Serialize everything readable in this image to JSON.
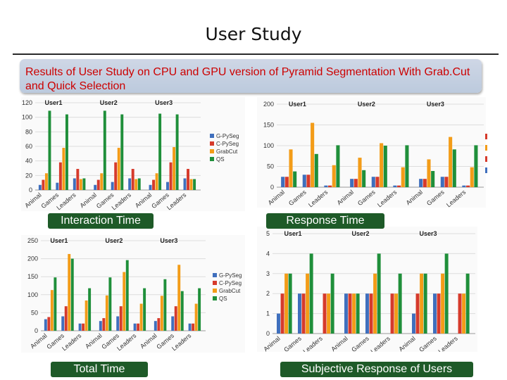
{
  "slide": {
    "title": "User Study",
    "subtitle": "Results of User Study on CPU and GPU version of Pyramid Segmentation With Grab.Cut and Quick Selection"
  },
  "captions": {
    "interaction": "Interaction Time",
    "response": "Response Time",
    "total": "Total Time",
    "subjective": "Subjective Response of Users"
  },
  "colors": {
    "g_pyseg": "#3f6fbd",
    "c_pyseg": "#d63a2b",
    "grabcut": "#f39c18",
    "qs": "#1f8f3a",
    "caption_bg": "#1e5a28",
    "subtitle_text": "#cc0000"
  },
  "chart_data": [
    {
      "id": "interaction",
      "type": "bar",
      "groups": [
        "User1",
        "User2",
        "User3"
      ],
      "categories": [
        "Animal",
        "Games",
        "Leaders"
      ],
      "yticks": [
        0,
        20,
        40,
        60,
        80,
        100,
        120
      ],
      "ylim": [
        0,
        120
      ],
      "legend": [
        "G-PySeg",
        "C-PySeg",
        "GrabCut",
        "QS"
      ],
      "series": [
        {
          "name": "G-PySeg",
          "values": [
            [
              7,
              10,
              16
            ],
            [
              7,
              11,
              16
            ],
            [
              7,
              11,
              16
            ]
          ]
        },
        {
          "name": "C-PySeg",
          "values": [
            [
              14,
              38,
              29
            ],
            [
              14,
              38,
              29
            ],
            [
              14,
              38,
              29
            ]
          ]
        },
        {
          "name": "GrabCut",
          "values": [
            [
              23,
              58,
              15
            ],
            [
              23,
              58,
              15
            ],
            [
              23,
              59,
              15
            ]
          ]
        },
        {
          "name": "QS",
          "values": [
            [
              109,
              104,
              16
            ],
            [
              109,
              104,
              16
            ],
            [
              105,
              104,
              15
            ]
          ]
        }
      ]
    },
    {
      "id": "response",
      "type": "bar",
      "groups": [
        "User1",
        "User2",
        "User3"
      ],
      "categories": [
        "Animal",
        "Games",
        "Leaders"
      ],
      "yticks": [
        0,
        50,
        100,
        150,
        200
      ],
      "ylim": [
        0,
        200
      ],
      "legend": [],
      "series": [
        {
          "name": "G-PySeg",
          "values": [
            [
              25,
              30,
              4
            ],
            [
              20,
              25,
              4
            ],
            [
              20,
              25,
              4
            ]
          ]
        },
        {
          "name": "C-PySeg",
          "values": [
            [
              25,
              30,
              4
            ],
            [
              20,
              25,
              4
            ],
            [
              20,
              25,
              4
            ]
          ]
        },
        {
          "name": "GrabCut",
          "values": [
            [
              91,
              155,
              53
            ],
            [
              71,
              106,
              48
            ],
            [
              67,
              121,
              48
            ]
          ]
        },
        {
          "name": "QS",
          "values": [
            [
              38,
              80,
              101
            ],
            [
              41,
              100,
              101
            ],
            [
              39,
              91,
              101
            ]
          ]
        }
      ]
    },
    {
      "id": "total",
      "type": "bar",
      "groups": [
        "User1",
        "User2",
        "User3"
      ],
      "categories": [
        "Animal",
        "Games",
        "Leaders"
      ],
      "yticks": [
        0,
        50,
        100,
        150,
        200,
        250
      ],
      "ylim": [
        0,
        250
      ],
      "legend": [
        "G-PySeg",
        "C-PySeg",
        "GrabCut",
        "QS"
      ],
      "series": [
        {
          "name": "G-PySeg",
          "values": [
            [
              32,
              40,
              20
            ],
            [
              27,
              40,
              20
            ],
            [
              27,
              40,
              20
            ]
          ]
        },
        {
          "name": "C-PySeg",
          "values": [
            [
              38,
              68,
              20
            ],
            [
              35,
              68,
              20
            ],
            [
              35,
              68,
              20
            ]
          ]
        },
        {
          "name": "GrabCut",
          "values": [
            [
              113,
              213,
              84
            ],
            [
              98,
              163,
              75
            ],
            [
              97,
              183,
              75
            ]
          ]
        },
        {
          "name": "QS",
          "values": [
            [
              148,
              200,
              118
            ],
            [
              148,
              196,
              118
            ],
            [
              143,
              110,
              118
            ]
          ]
        }
      ]
    },
    {
      "id": "subjective",
      "type": "bar",
      "groups": [
        "User1",
        "User2",
        "User3"
      ],
      "categories": [
        "Animal",
        "Games",
        "Leaders"
      ],
      "yticks": [
        0,
        1,
        2,
        3,
        4,
        5
      ],
      "ylim": [
        0,
        5
      ],
      "legend": [],
      "series": [
        {
          "name": "G-PySeg",
          "values": [
            [
              1,
              2,
              0
            ],
            [
              2,
              2,
              0
            ],
            [
              1,
              2,
              0
            ]
          ]
        },
        {
          "name": "C-PySeg",
          "values": [
            [
              2,
              2,
              2
            ],
            [
              2,
              2,
              2
            ],
            [
              2,
              2,
              2
            ]
          ]
        },
        {
          "name": "GrabCut",
          "values": [
            [
              3,
              3,
              2
            ],
            [
              2,
              3,
              2
            ],
            [
              3,
              3,
              2
            ]
          ]
        },
        {
          "name": "QS",
          "values": [
            [
              3,
              4,
              3
            ],
            [
              2,
              4,
              3
            ],
            [
              3,
              4,
              3
            ]
          ]
        }
      ]
    }
  ]
}
